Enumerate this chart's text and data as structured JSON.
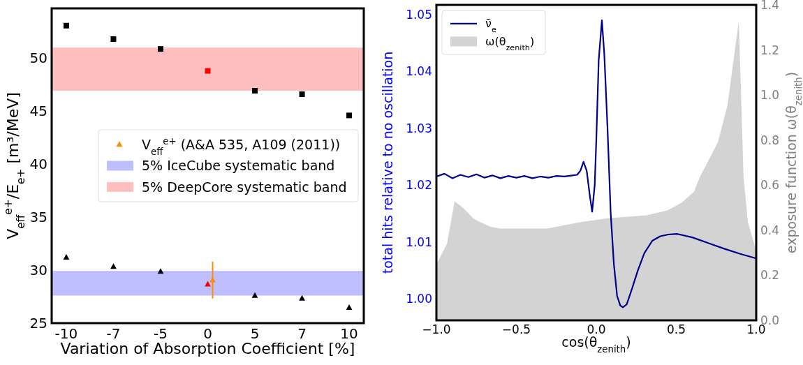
{
  "chart_data": [
    {
      "type": "scatter",
      "xlabel": "Variation of Absorption Coefficient [%]",
      "ylabel": "V$_{eff}$$^{e+}$/E$_{e+}$ [m³/MeV]",
      "categories": [
        "-10",
        "-7",
        "-5",
        "0",
        "5",
        "7",
        "10"
      ],
      "ylim": [
        25,
        54.7
      ],
      "yticks": [
        25,
        30,
        35,
        40,
        45,
        50
      ],
      "legend": "center right",
      "bands": [
        {
          "axis": "y",
          "from": 27.6,
          "to": 29.93,
          "label": "5% IceCube systematic band",
          "color": "#bfbfff"
        },
        {
          "axis": "y",
          "from": 46.93,
          "to": 51.0,
          "label": "5% DeepCore systematic band",
          "color": "#ffbfbf"
        }
      ],
      "series": [
        {
          "color": "#000000",
          "marker": "square",
          "values": [
            53.07,
            51.8,
            50.87,
            null,
            46.93,
            46.6,
            44.6
          ],
          "errors": [
            0.2,
            0.1,
            0.1,
            null,
            0.1,
            0.1,
            0.2
          ]
        },
        {
          "color": "#ff0000",
          "marker": "square",
          "values": [
            null,
            null,
            null,
            48.8,
            null,
            null,
            null
          ]
        },
        {
          "color": "#000000",
          "marker": "triangle",
          "values": [
            31.2,
            30.33,
            29.87,
            null,
            27.6,
            27.33,
            26.47
          ]
        },
        {
          "color": "#ff0000",
          "marker": "triangle",
          "values": [
            null,
            null,
            null,
            28.67,
            null,
            null,
            null
          ]
        },
        {
          "name": "V$_{eff}$$^{e+}$  (A&A 535, A109 (2011))",
          "color": "#ff8c00",
          "marker": "triangle",
          "values": [
            null,
            null,
            null,
            29.07,
            null,
            null,
            null
          ],
          "errors": [
            null,
            null,
            null,
            [
              27.33,
              30.8
            ],
            null,
            null,
            null
          ]
        }
      ]
    },
    {
      "type": "line",
      "xlabel": "cos(θ$_{zenith}$)",
      "ylabel": "total  hits relative to no oscillation",
      "y2label": "exposure function ω(θ$_{zenith}$)",
      "xlim": [
        -1,
        1
      ],
      "xticks": [
        {
          "value": -1,
          "label": "−1.0"
        },
        {
          "value": -0.5,
          "label": "−0.5"
        },
        {
          "value": 0,
          "label": "0.0"
        },
        {
          "value": 0.5,
          "label": "0.5"
        },
        {
          "value": 1,
          "label": "1.0"
        }
      ],
      "ylim": [
        0.9962,
        1.0517
      ],
      "yticks": [
        {
          "value": 1,
          "label": "1.00"
        },
        {
          "value": 1.01,
          "label": "1.01"
        },
        {
          "value": 1.02,
          "label": "1.02"
        },
        {
          "value": 1.03,
          "label": "1.03"
        },
        {
          "value": 1.04,
          "label": "1.04"
        },
        {
          "value": 1.05,
          "label": "1.05"
        }
      ],
      "y2lim": [
        0,
        1.4
      ],
      "y2ticks": [
        {
          "value": 0,
          "label": "0.0"
        },
        {
          "value": 0.2,
          "label": "0.2"
        },
        {
          "value": 0.4,
          "label": "0.4"
        },
        {
          "value": 0.6,
          "label": "0.6"
        },
        {
          "value": 0.8,
          "label": "0.8"
        },
        {
          "value": 1,
          "label": "1.0"
        },
        {
          "value": 1.2,
          "label": "1.2"
        },
        {
          "value": 1.4,
          "label": "1.4"
        }
      ],
      "legend": "top left",
      "series": [
        {
          "name": "ν̄$_{e}$",
          "color": "#00008b",
          "x": [
            -1.0,
            -0.95,
            -0.9,
            -0.85,
            -0.8,
            -0.75,
            -0.7,
            -0.65,
            -0.6,
            -0.55,
            -0.5,
            -0.45,
            -0.4,
            -0.35,
            -0.3,
            -0.25,
            -0.2,
            -0.15,
            -0.12,
            -0.1,
            -0.08,
            -0.06,
            -0.04,
            -0.026,
            -0.01,
            0.0,
            0.015,
            0.035,
            0.05,
            0.07,
            0.09,
            0.11,
            0.13,
            0.15,
            0.166,
            0.19,
            0.22,
            0.26,
            0.3,
            0.35,
            0.4,
            0.45,
            0.507,
            0.6,
            0.7,
            0.8,
            0.9,
            1.0
          ],
          "values": [
            1.0215,
            1.022,
            1.0212,
            1.0218,
            1.0214,
            1.0219,
            1.0213,
            1.0217,
            1.0212,
            1.0216,
            1.0213,
            1.0216,
            1.0212,
            1.0215,
            1.0213,
            1.0216,
            1.0215,
            1.0217,
            1.0218,
            1.0225,
            1.0241,
            1.0225,
            1.018,
            1.0153,
            1.02,
            1.028,
            1.042,
            1.049,
            1.043,
            1.03,
            1.015,
            1.006,
            1.0005,
            0.9988,
            0.9985,
            0.999,
            1.0015,
            1.005,
            1.008,
            1.0102,
            1.011,
            1.0113,
            1.0114,
            1.0108,
            1.0098,
            1.0088,
            1.0079,
            1.0071
          ]
        },
        {
          "name": "ω(θ$_{zenith}$)",
          "type": "area",
          "axis": "y2",
          "color": "#d3d3d3",
          "x": [
            -1.0,
            -0.934,
            -0.886,
            -0.83,
            -0.77,
            -0.734,
            -0.664,
            -0.603,
            -0.306,
            -0.105,
            0.07,
            0.314,
            0.445,
            0.533,
            0.611,
            0.646,
            0.76,
            0.821,
            0.891,
            0.921,
            0.948,
            1.0
          ],
          "values": [
            0.248,
            0.34,
            0.528,
            0.497,
            0.453,
            0.438,
            0.416,
            0.407,
            0.407,
            0.435,
            0.453,
            0.466,
            0.488,
            0.522,
            0.571,
            0.634,
            0.789,
            0.957,
            1.329,
            0.634,
            0.435,
            0.31
          ]
        }
      ]
    }
  ]
}
